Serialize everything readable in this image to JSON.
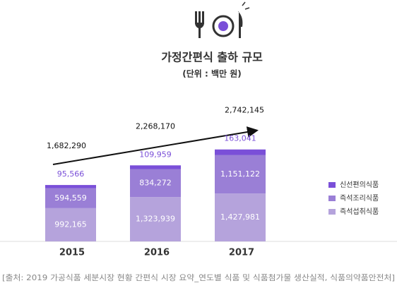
{
  "chart_data": {
    "type": "stacked-bar",
    "title": "가정간편식 출하 규모",
    "subtitle": "(단위 : 백만 원)",
    "categories": [
      "2015",
      "2016",
      "2017"
    ],
    "series": [
      {
        "name": "즉석섭취식품",
        "color": "#b5a3dc",
        "values": [
          992165,
          1323939,
          1427981
        ],
        "value_labels": [
          "992,165",
          "1,323,939",
          "1,427,981"
        ]
      },
      {
        "name": "즉석조리식품",
        "color": "#9a7fd6",
        "values": [
          594559,
          834272,
          1151122
        ],
        "value_labels": [
          "594,559",
          "834,272",
          "1,151,122"
        ]
      },
      {
        "name": "신선편의식품",
        "color": "#7a4fd8",
        "values": [
          95566,
          109959,
          163041
        ],
        "value_labels": [
          "95,566",
          "109,959",
          "163,041"
        ]
      }
    ],
    "totals": [
      1682290,
      2268170,
      2742145
    ],
    "totals_labels": [
      "1,682,290",
      "2,268,170",
      "2,742,145"
    ],
    "source": "[출처: 2019 가공식품 세분시장 현황 간편식 시장 요약_연도별 식품 및 식품첨가물 생산실적, 식품의약품안전처]"
  }
}
